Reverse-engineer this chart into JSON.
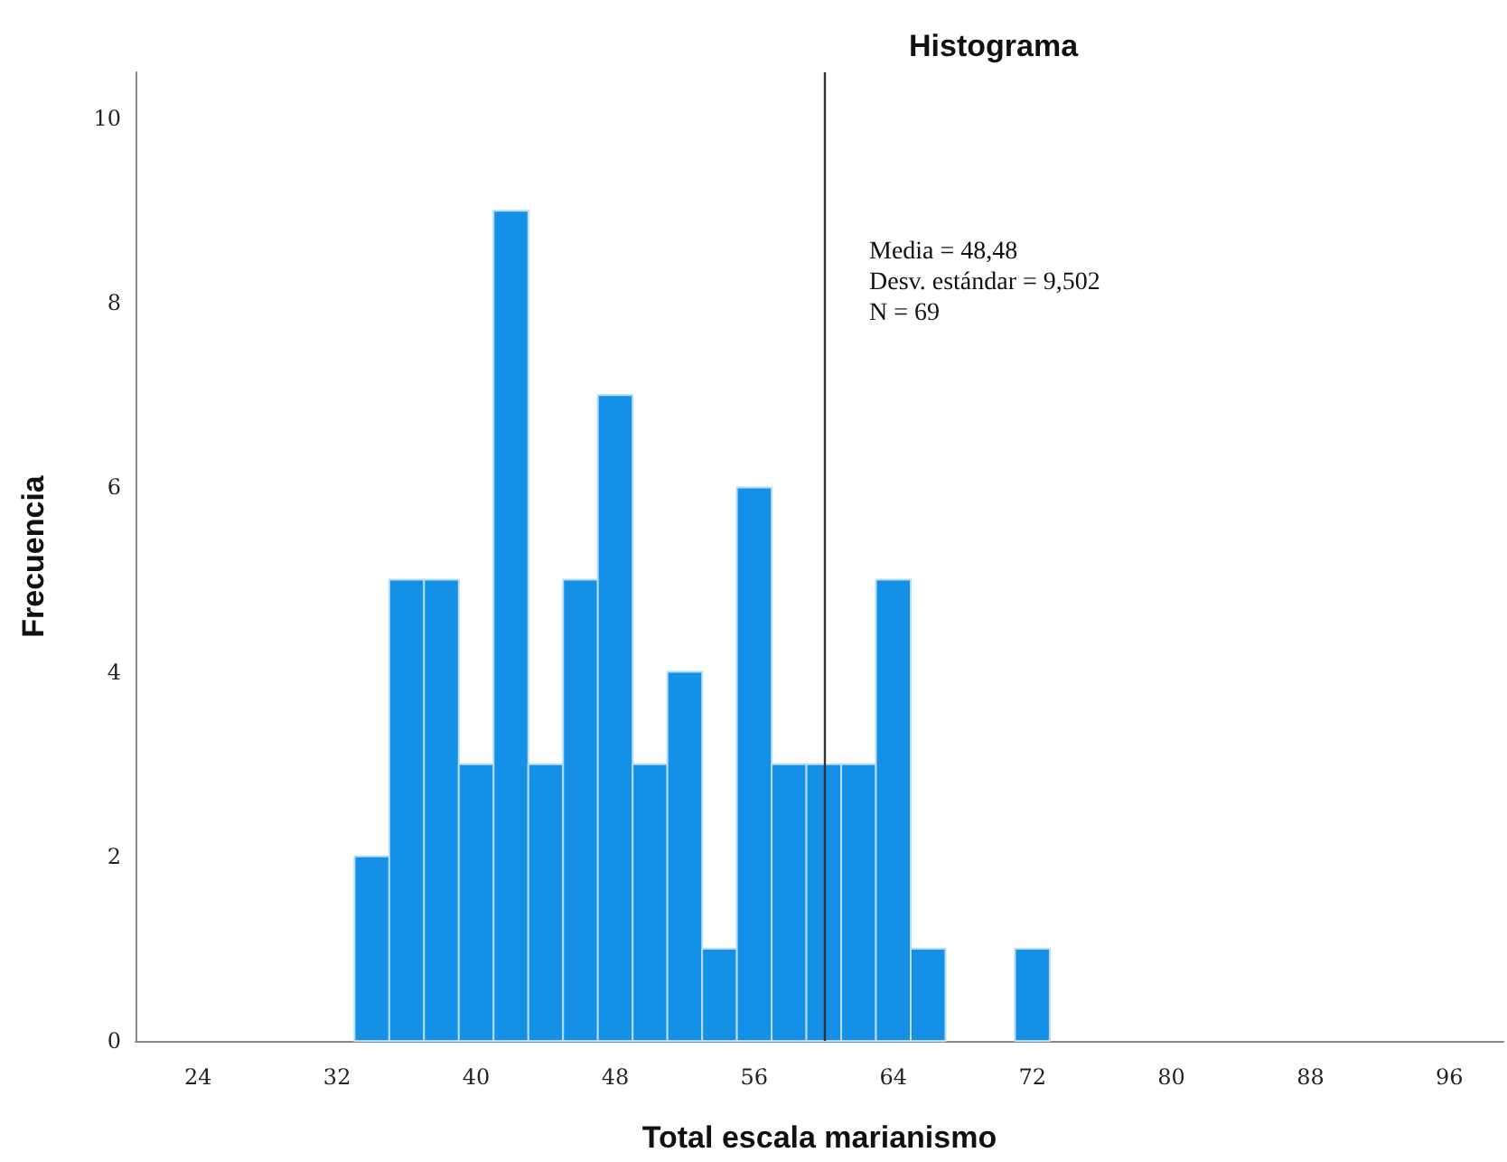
{
  "chart_data": {
    "type": "histogram",
    "title": "Histograma",
    "xlabel": "Total escala marianismo",
    "ylabel": "Frecuencia",
    "bins": [
      33,
      35,
      37,
      39,
      41,
      43,
      45,
      47,
      49,
      51,
      53,
      55,
      57,
      59,
      61,
      63,
      65,
      67,
      69,
      71,
      73
    ],
    "values": [
      2,
      5,
      5,
      3,
      9,
      3,
      5,
      7,
      3,
      4,
      1,
      6,
      3,
      3,
      3,
      5,
      1,
      0,
      0,
      1
    ],
    "color": "#1491e6",
    "xlim": [
      20.4,
      99.1
    ],
    "xticks": [
      24,
      32,
      40,
      48,
      56,
      64,
      72,
      80,
      88,
      96
    ],
    "ylim": [
      0,
      10.5
    ],
    "yticks": [
      0,
      2,
      4,
      6,
      8,
      10
    ],
    "ref_lines": [
      {
        "axis": "x",
        "value": 60,
        "color": "#333333"
      }
    ],
    "annotations": [
      "Media = 48,48",
      "Desv. estándar = 9,502",
      "N = 69"
    ],
    "grid": false
  }
}
